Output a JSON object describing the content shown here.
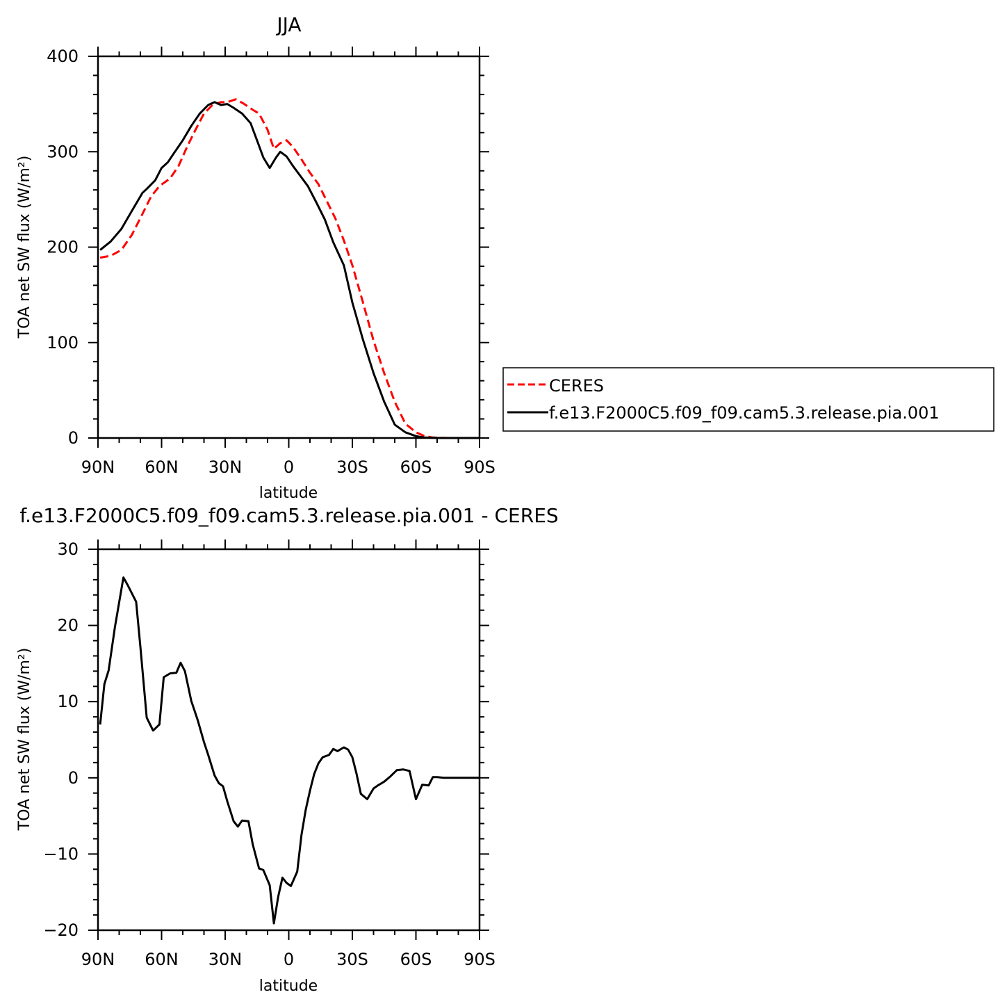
{
  "chart_data": [
    {
      "type": "line",
      "title": "JJA",
      "xlabel": "latitude",
      "ylabel": "TOA net SW flux (W/m²)",
      "xlim": [
        90,
        -90
      ],
      "ylim": [
        0,
        400
      ],
      "x_ticks": [
        90,
        60,
        30,
        0,
        -30,
        -60,
        -90
      ],
      "x_tick_labels": [
        "90N",
        "60N",
        "30N",
        "0",
        "30S",
        "60S",
        "90S"
      ],
      "y_ticks": [
        0,
        100,
        200,
        300,
        400
      ],
      "y_tick_labels": [
        "0",
        "100",
        "200",
        "300",
        "400"
      ],
      "grid": false,
      "legend": {
        "position": "right",
        "entries": [
          "CERES",
          "f.e13.F2000C5.f09_f09.cam5.3.release.pia.001"
        ]
      },
      "series": [
        {
          "name": "CERES",
          "color": "#ff0000",
          "style": "dashed",
          "x": [
            89,
            84,
            79,
            74,
            69,
            65,
            61,
            56,
            52,
            48,
            44,
            40,
            36,
            32,
            29,
            25,
            21,
            17,
            14,
            10,
            7,
            4,
            1,
            -2,
            -6,
            -10,
            -14,
            -18,
            -22,
            -26,
            -30,
            -35,
            -40,
            -45,
            -50,
            -55,
            -60,
            -64,
            -68,
            -72,
            -76,
            -80,
            -85,
            -90
          ],
          "values": [
            189,
            191,
            197,
            213,
            235,
            253,
            264,
            272,
            285,
            305,
            323,
            340,
            349,
            352,
            352,
            355,
            350,
            344,
            340,
            323,
            303,
            309,
            312,
            305,
            292,
            278,
            266,
            248,
            230,
            207,
            181,
            142,
            102,
            68,
            38,
            15,
            6,
            2,
            0.5,
            0.2,
            0,
            0,
            0,
            0
          ],
          "values_note": ""
        },
        {
          "name": "f.e13.F2000C5.f09_f09.cam5.3.release.pia.001",
          "color": "#000000",
          "style": "solid",
          "x": [
            89,
            84,
            79,
            74,
            69,
            67,
            63,
            60,
            57,
            54,
            50,
            46,
            42,
            38,
            35,
            32,
            29,
            26,
            22,
            18,
            15,
            12,
            9,
            6,
            4,
            1,
            -2,
            -5,
            -9,
            -13,
            -17,
            -21,
            -26,
            -30,
            -35,
            -40,
            -45,
            -50,
            -55,
            -60,
            -64,
            -68,
            -72,
            -76,
            -80,
            -85,
            -90
          ],
          "values": [
            197,
            206,
            219,
            238,
            257,
            261,
            270,
            283,
            289,
            299,
            312,
            327,
            340,
            349,
            352,
            349,
            350,
            346,
            340,
            330,
            312,
            294,
            283,
            294,
            300,
            295,
            285,
            276,
            264,
            247,
            229,
            205,
            181,
            142,
            103,
            68,
            38,
            14,
            6,
            2,
            0.5,
            0.2,
            0,
            0,
            0,
            0,
            0
          ]
        }
      ]
    },
    {
      "type": "line",
      "title": "f.e13.F2000C5.f09_f09.cam5.3.release.pia.001  -  CERES",
      "xlabel": "latitude",
      "ylabel": "TOA net SW flux (W/m²)",
      "xlim": [
        90,
        -90
      ],
      "ylim": [
        -20,
        30
      ],
      "x_ticks": [
        90,
        60,
        30,
        0,
        -30,
        -60,
        -90
      ],
      "x_tick_labels": [
        "90N",
        "60N",
        "30N",
        "0",
        "30S",
        "60S",
        "90S"
      ],
      "y_ticks": [
        -20,
        -10,
        0,
        10,
        20,
        30
      ],
      "y_tick_labels": [
        "−20",
        "−10",
        "0",
        "10",
        "20",
        "30"
      ],
      "grid": false,
      "series": [
        {
          "color": "#000000",
          "style": "solid",
          "x": [
            89,
            87,
            85,
            82,
            78,
            76,
            72,
            70,
            67,
            64,
            61,
            59,
            56,
            53,
            51,
            49,
            46,
            43,
            40,
            38,
            35,
            33,
            31,
            29,
            26,
            24,
            22,
            19,
            17,
            14,
            12,
            9,
            7,
            5,
            3,
            1,
            -1,
            -4,
            -6,
            -8,
            -10,
            -12,
            -14,
            -16,
            -19,
            -21,
            -23,
            -26,
            -28,
            -30,
            -32,
            -34,
            -37,
            -40,
            -42,
            -45,
            -48,
            -51,
            -54,
            -57,
            -60,
            -63,
            -66,
            -68,
            -70,
            -73,
            -75,
            -80,
            -85,
            -90
          ],
          "values": [
            7,
            12.3,
            14.1,
            19.8,
            26.3,
            25.3,
            23.1,
            17.2,
            7.9,
            6.2,
            7,
            13.2,
            13.7,
            13.8,
            15.1,
            14,
            10.1,
            7.6,
            4.7,
            3,
            0.3,
            -0.7,
            -1.1,
            -3.1,
            -5.7,
            -6.4,
            -5.6,
            -5.7,
            -8.7,
            -11.9,
            -12.1,
            -14.1,
            -19.1,
            -15.6,
            -13.1,
            -13.8,
            -14.2,
            -12.3,
            -7.5,
            -4.2,
            -1.7,
            0.5,
            1.9,
            2.7,
            3,
            3.8,
            3.5,
            4,
            3.7,
            2.7,
            0.5,
            -2.1,
            -2.8,
            -1.4,
            -1,
            -0.5,
            0.2,
            1,
            1.1,
            0.9,
            -2.8,
            -0.9,
            -1,
            0.1,
            0.1,
            0.0,
            0,
            0,
            0,
            0
          ]
        }
      ]
    }
  ]
}
